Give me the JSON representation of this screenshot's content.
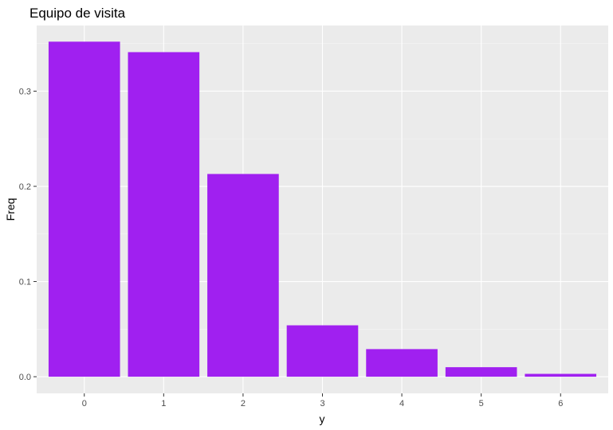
{
  "chart_data": {
    "type": "bar",
    "title": "Equipo de visita",
    "xlabel": "y",
    "ylabel": "Freq",
    "categories": [
      "0",
      "1",
      "2",
      "3",
      "4",
      "5",
      "6"
    ],
    "values": [
      0.352,
      0.341,
      0.213,
      0.054,
      0.029,
      0.01,
      0.003
    ],
    "ylim": [
      -0.0175,
      0.369
    ],
    "yticks": [
      "0.0",
      "0.1",
      "0.2",
      "0.3"
    ],
    "grid": true,
    "legend": "none",
    "colors": {
      "bar": "#A020F0",
      "panel": "#EBEBEB",
      "grid_major": "#FFFFFF",
      "grid_minor": "#F5F5F5"
    }
  }
}
